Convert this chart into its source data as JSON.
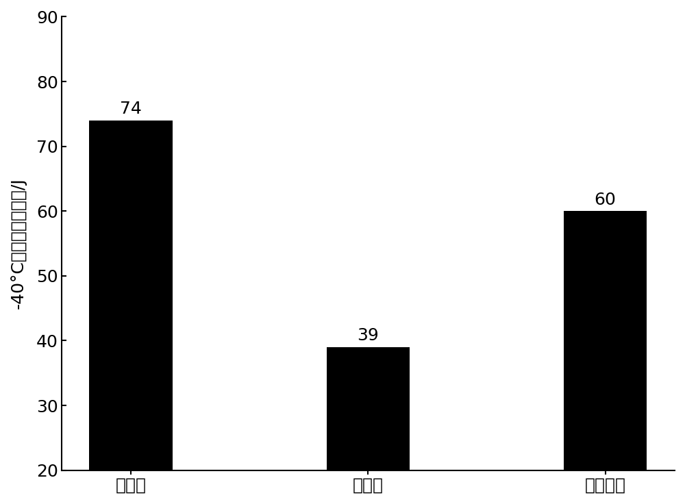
{
  "categories": [
    "调质态",
    "时效态",
    "脉冲处理"
  ],
  "values": [
    74,
    39,
    60
  ],
  "bar_color": "#000000",
  "bar_width": 0.35,
  "ylabel": "-40°C夏比冲击吸收功/J",
  "ylim": [
    20,
    90
  ],
  "yticks": [
    20,
    30,
    40,
    50,
    60,
    70,
    80,
    90
  ],
  "value_labels": [
    "74",
    "39",
    "60"
  ],
  "value_fontsize": 18,
  "tick_fontsize": 18,
  "label_fontsize": 18,
  "background_color": "#ffffff",
  "edge_color": "#000000"
}
